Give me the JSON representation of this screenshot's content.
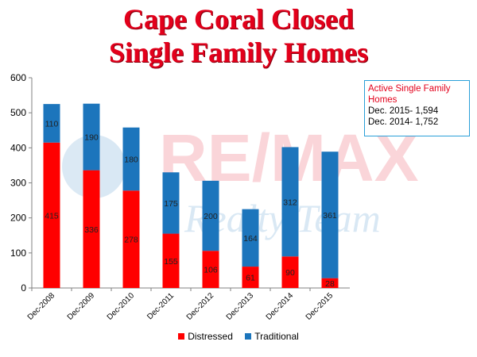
{
  "title_line1": "Cape Coral Closed",
  "title_line2": "Single Family Homes",
  "infobox": {
    "heading": "Active Single Family Homes",
    "line1": "Dec. 2015- 1,594",
    "line2": "Dec. 2014- 1,752"
  },
  "watermark": {
    "brand": "RE/MAX",
    "team": "Realty Team"
  },
  "colors": {
    "distressed": "#ff0000",
    "traditional": "#1c75bc",
    "title": "#e3001b"
  },
  "chart_data": {
    "type": "bar",
    "stacked": true,
    "categories": [
      "Dec-2008",
      "Dec-2009",
      "Dec-2010",
      "Dec-2011",
      "Dec-2012",
      "Dec-2013",
      "Dec-2014",
      "Dec-2015"
    ],
    "series": [
      {
        "name": "Distressed",
        "values": [
          415,
          336,
          278,
          155,
          106,
          61,
          90,
          28
        ]
      },
      {
        "name": "Traditional",
        "values": [
          110,
          190,
          180,
          175,
          200,
          164,
          312,
          361
        ]
      }
    ],
    "ylim": [
      0,
      600
    ],
    "yticks": [
      0,
      100,
      200,
      300,
      400,
      500,
      600
    ],
    "grid": false,
    "legend": "bottom"
  }
}
